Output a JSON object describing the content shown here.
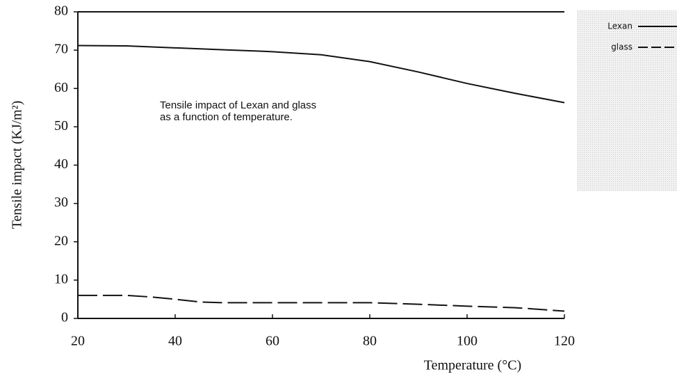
{
  "chart_data": {
    "type": "line",
    "x_label": "Temperature (°C)",
    "y_label": "Tensile impact (KJ/m²)",
    "annotations": [
      "Tensile impact of Lexan and glass",
      "as a function of temperature."
    ],
    "series": [
      {
        "name": "Lexan",
        "color": "#111111",
        "line_style": "solid",
        "x": [
          20,
          30,
          40,
          50,
          60,
          70,
          80,
          90,
          100,
          110,
          120
        ],
        "values": [
          71.2,
          71.1,
          70.6,
          70.1,
          69.6,
          68.8,
          67,
          64.3,
          61.3,
          58.7,
          56.3
        ]
      },
      {
        "name": "glass",
        "color": "#111111",
        "line_style": "dashed",
        "x": [
          20,
          30,
          35,
          40,
          45,
          50,
          60,
          70,
          80,
          90,
          100,
          110,
          120
        ],
        "values": [
          6,
          6,
          5.6,
          5,
          4.3,
          4.1,
          4.1,
          4.1,
          4.1,
          3.7,
          3.2,
          2.8,
          1.9
        ]
      }
    ],
    "xlim": [
      20,
      120
    ],
    "xticks": [
      20,
      40,
      60,
      80,
      100,
      120
    ],
    "ylim": [
      0,
      80
    ],
    "yticks": [
      0,
      10,
      20,
      30,
      40,
      50,
      60,
      70,
      80
    ],
    "legend": "top-right"
  }
}
